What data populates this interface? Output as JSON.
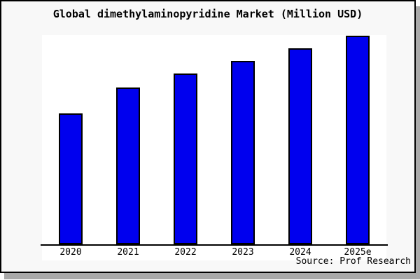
{
  "title": "Global dimethylaminopyridine Market (Million USD)",
  "source_credit": "Source: Prof Research",
  "colors": {
    "bar_fill": "#0000ee",
    "bar_border": "#000000",
    "frame_border": "#000000",
    "frame_background": "#f8f8f8",
    "plot_background": "#ffffff",
    "shadow": "#a9a9a9",
    "text": "#000000"
  },
  "chart_data": {
    "type": "bar",
    "title": "Global dimethylaminopyridine Market (Million USD)",
    "categories": [
      "2020",
      "2021",
      "2022",
      "2023",
      "2024",
      "2025e"
    ],
    "values": [
      188,
      225,
      245,
      263,
      281,
      299
    ],
    "value_scale": "relative (y-axis has no tick labels; values are measured relative bar heights)",
    "xlabel": "",
    "ylabel": "",
    "legend": "none",
    "grid": false
  }
}
